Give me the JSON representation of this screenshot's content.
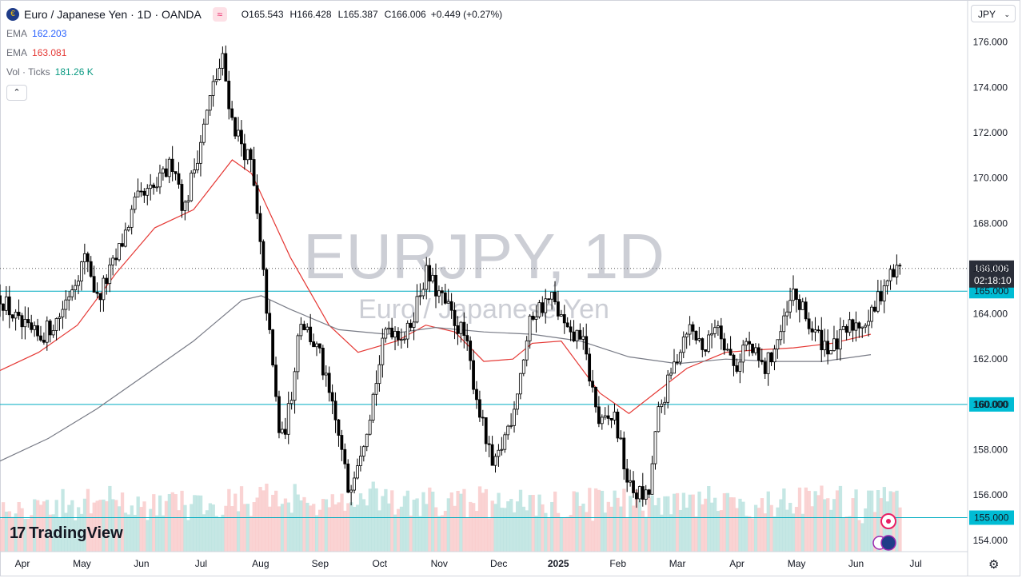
{
  "header": {
    "symbol_icon": "euro-yen-flag-icon",
    "title": "Euro / Japanese Yen · 1D · OANDA",
    "compare_glyph": "≈",
    "ohlc": [
      {
        "key": "O",
        "value": "165.543"
      },
      {
        "key": "H",
        "value": "166.428"
      },
      {
        "key": "L",
        "value": "165.387"
      },
      {
        "key": "C",
        "value": "166.006"
      }
    ],
    "change": "+0.449 (+0.27%)",
    "currency": "JPY",
    "currency_chevron": "⌄"
  },
  "indicators": [
    {
      "name": "EMA",
      "value": "162.203",
      "color": "#2962ff"
    },
    {
      "name": "EMA",
      "value": "163.081",
      "color": "#e53935"
    },
    {
      "name": "Vol · Ticks",
      "value": "181.26 K",
      "color": "#089981"
    }
  ],
  "collapse_glyph": "⌃",
  "watermark": {
    "symbol": "EURJPY, 1D",
    "name": "Euro / Japanese Yen"
  },
  "branding": {
    "logo_mark": "17",
    "logo_text": "TradingView"
  },
  "chart_data": {
    "type": "candlestick",
    "y_ticks": [
      "176.000",
      "174.000",
      "172.000",
      "170.000",
      "168.000",
      "166.000",
      "164.000",
      "162.000",
      "160.000",
      "158.000",
      "156.000",
      "154.000"
    ],
    "y_range": [
      153.5,
      176.8
    ],
    "x_ticks": [
      "Apr",
      "May",
      "Jun",
      "Jul",
      "Aug",
      "Sep",
      "Oct",
      "Nov",
      "Dec",
      "2025",
      "Feb",
      "Mar",
      "Apr",
      "May",
      "Jun",
      "Jul"
    ],
    "last_price": {
      "label": "166.006",
      "countdown": "02:18:10",
      "value": 166.006
    },
    "horizontal_lines": [
      {
        "label": "165.000",
        "value": 165.0
      },
      {
        "label": "160.000",
        "value": 160.0
      },
      {
        "label": "155.000",
        "value": 155.0
      }
    ],
    "price_path": [
      [
        0,
        164.8
      ],
      [
        0.02,
        163.5
      ],
      [
        0.04,
        162.9
      ],
      [
        0.06,
        163.8
      ],
      [
        0.08,
        165.8
      ],
      [
        0.09,
        166.6
      ],
      [
        0.1,
        164.6
      ],
      [
        0.12,
        166.4
      ],
      [
        0.14,
        168.9
      ],
      [
        0.16,
        169.5
      ],
      [
        0.18,
        170.8
      ],
      [
        0.19,
        168.5
      ],
      [
        0.2,
        170.3
      ],
      [
        0.22,
        174.0
      ],
      [
        0.23,
        175.2
      ],
      [
        0.24,
        172.5
      ],
      [
        0.26,
        170.5
      ],
      [
        0.275,
        164.5
      ],
      [
        0.29,
        158.2
      ],
      [
        0.3,
        160.0
      ],
      [
        0.31,
        163.9
      ],
      [
        0.33,
        162.2
      ],
      [
        0.35,
        158.6
      ],
      [
        0.36,
        156.2
      ],
      [
        0.38,
        159.2
      ],
      [
        0.4,
        163.5
      ],
      [
        0.42,
        163.0
      ],
      [
        0.44,
        165.8
      ],
      [
        0.46,
        164.4
      ],
      [
        0.48,
        163.0
      ],
      [
        0.5,
        158.8
      ],
      [
        0.51,
        157.0
      ],
      [
        0.53,
        159.7
      ],
      [
        0.55,
        164.0
      ],
      [
        0.57,
        164.7
      ],
      [
        0.59,
        162.8
      ],
      [
        0.6,
        163.2
      ],
      [
        0.62,
        159.0
      ],
      [
        0.635,
        159.5
      ],
      [
        0.65,
        156.3
      ],
      [
        0.67,
        155.8
      ],
      [
        0.68,
        159.5
      ],
      [
        0.695,
        161.5
      ],
      [
        0.71,
        163.5
      ],
      [
        0.73,
        162.4
      ],
      [
        0.74,
        163.8
      ],
      [
        0.76,
        161.5
      ],
      [
        0.77,
        162.8
      ],
      [
        0.79,
        161.5
      ],
      [
        0.81,
        163.5
      ],
      [
        0.82,
        164.9
      ],
      [
        0.84,
        163.2
      ],
      [
        0.86,
        162.4
      ],
      [
        0.88,
        163.5
      ],
      [
        0.9,
        163.8
      ],
      [
        0.915,
        165.5
      ],
      [
        0.93,
        166.0
      ]
    ],
    "series": [
      {
        "name": "EMA",
        "color": "#e53935",
        "points": [
          [
            0,
            161.5
          ],
          [
            0.04,
            162.3
          ],
          [
            0.08,
            163.5
          ],
          [
            0.12,
            165.8
          ],
          [
            0.16,
            167.8
          ],
          [
            0.2,
            168.6
          ],
          [
            0.24,
            170.8
          ],
          [
            0.26,
            170.2
          ],
          [
            0.3,
            166.5
          ],
          [
            0.34,
            163.5
          ],
          [
            0.37,
            162.3
          ],
          [
            0.41,
            162.8
          ],
          [
            0.44,
            163.5
          ],
          [
            0.47,
            163.2
          ],
          [
            0.5,
            161.9
          ],
          [
            0.53,
            162.0
          ],
          [
            0.55,
            162.7
          ],
          [
            0.58,
            162.8
          ],
          [
            0.62,
            160.5
          ],
          [
            0.65,
            159.6
          ],
          [
            0.68,
            160.6
          ],
          [
            0.71,
            161.6
          ],
          [
            0.75,
            162.3
          ],
          [
            0.78,
            162.4
          ],
          [
            0.82,
            162.5
          ],
          [
            0.86,
            162.7
          ],
          [
            0.9,
            163.1
          ]
        ]
      },
      {
        "name": "EMA",
        "color": "#787b86",
        "points": [
          [
            0,
            157.5
          ],
          [
            0.05,
            158.5
          ],
          [
            0.1,
            159.8
          ],
          [
            0.15,
            161.3
          ],
          [
            0.2,
            162.8
          ],
          [
            0.25,
            164.6
          ],
          [
            0.27,
            164.8
          ],
          [
            0.3,
            164.2
          ],
          [
            0.35,
            163.3
          ],
          [
            0.4,
            163.1
          ],
          [
            0.45,
            163.4
          ],
          [
            0.5,
            163.2
          ],
          [
            0.55,
            163.1
          ],
          [
            0.6,
            162.8
          ],
          [
            0.65,
            162.1
          ],
          [
            0.7,
            161.8
          ],
          [
            0.75,
            162.0
          ],
          [
            0.8,
            161.9
          ],
          [
            0.85,
            161.9
          ],
          [
            0.9,
            162.2
          ]
        ]
      }
    ]
  }
}
